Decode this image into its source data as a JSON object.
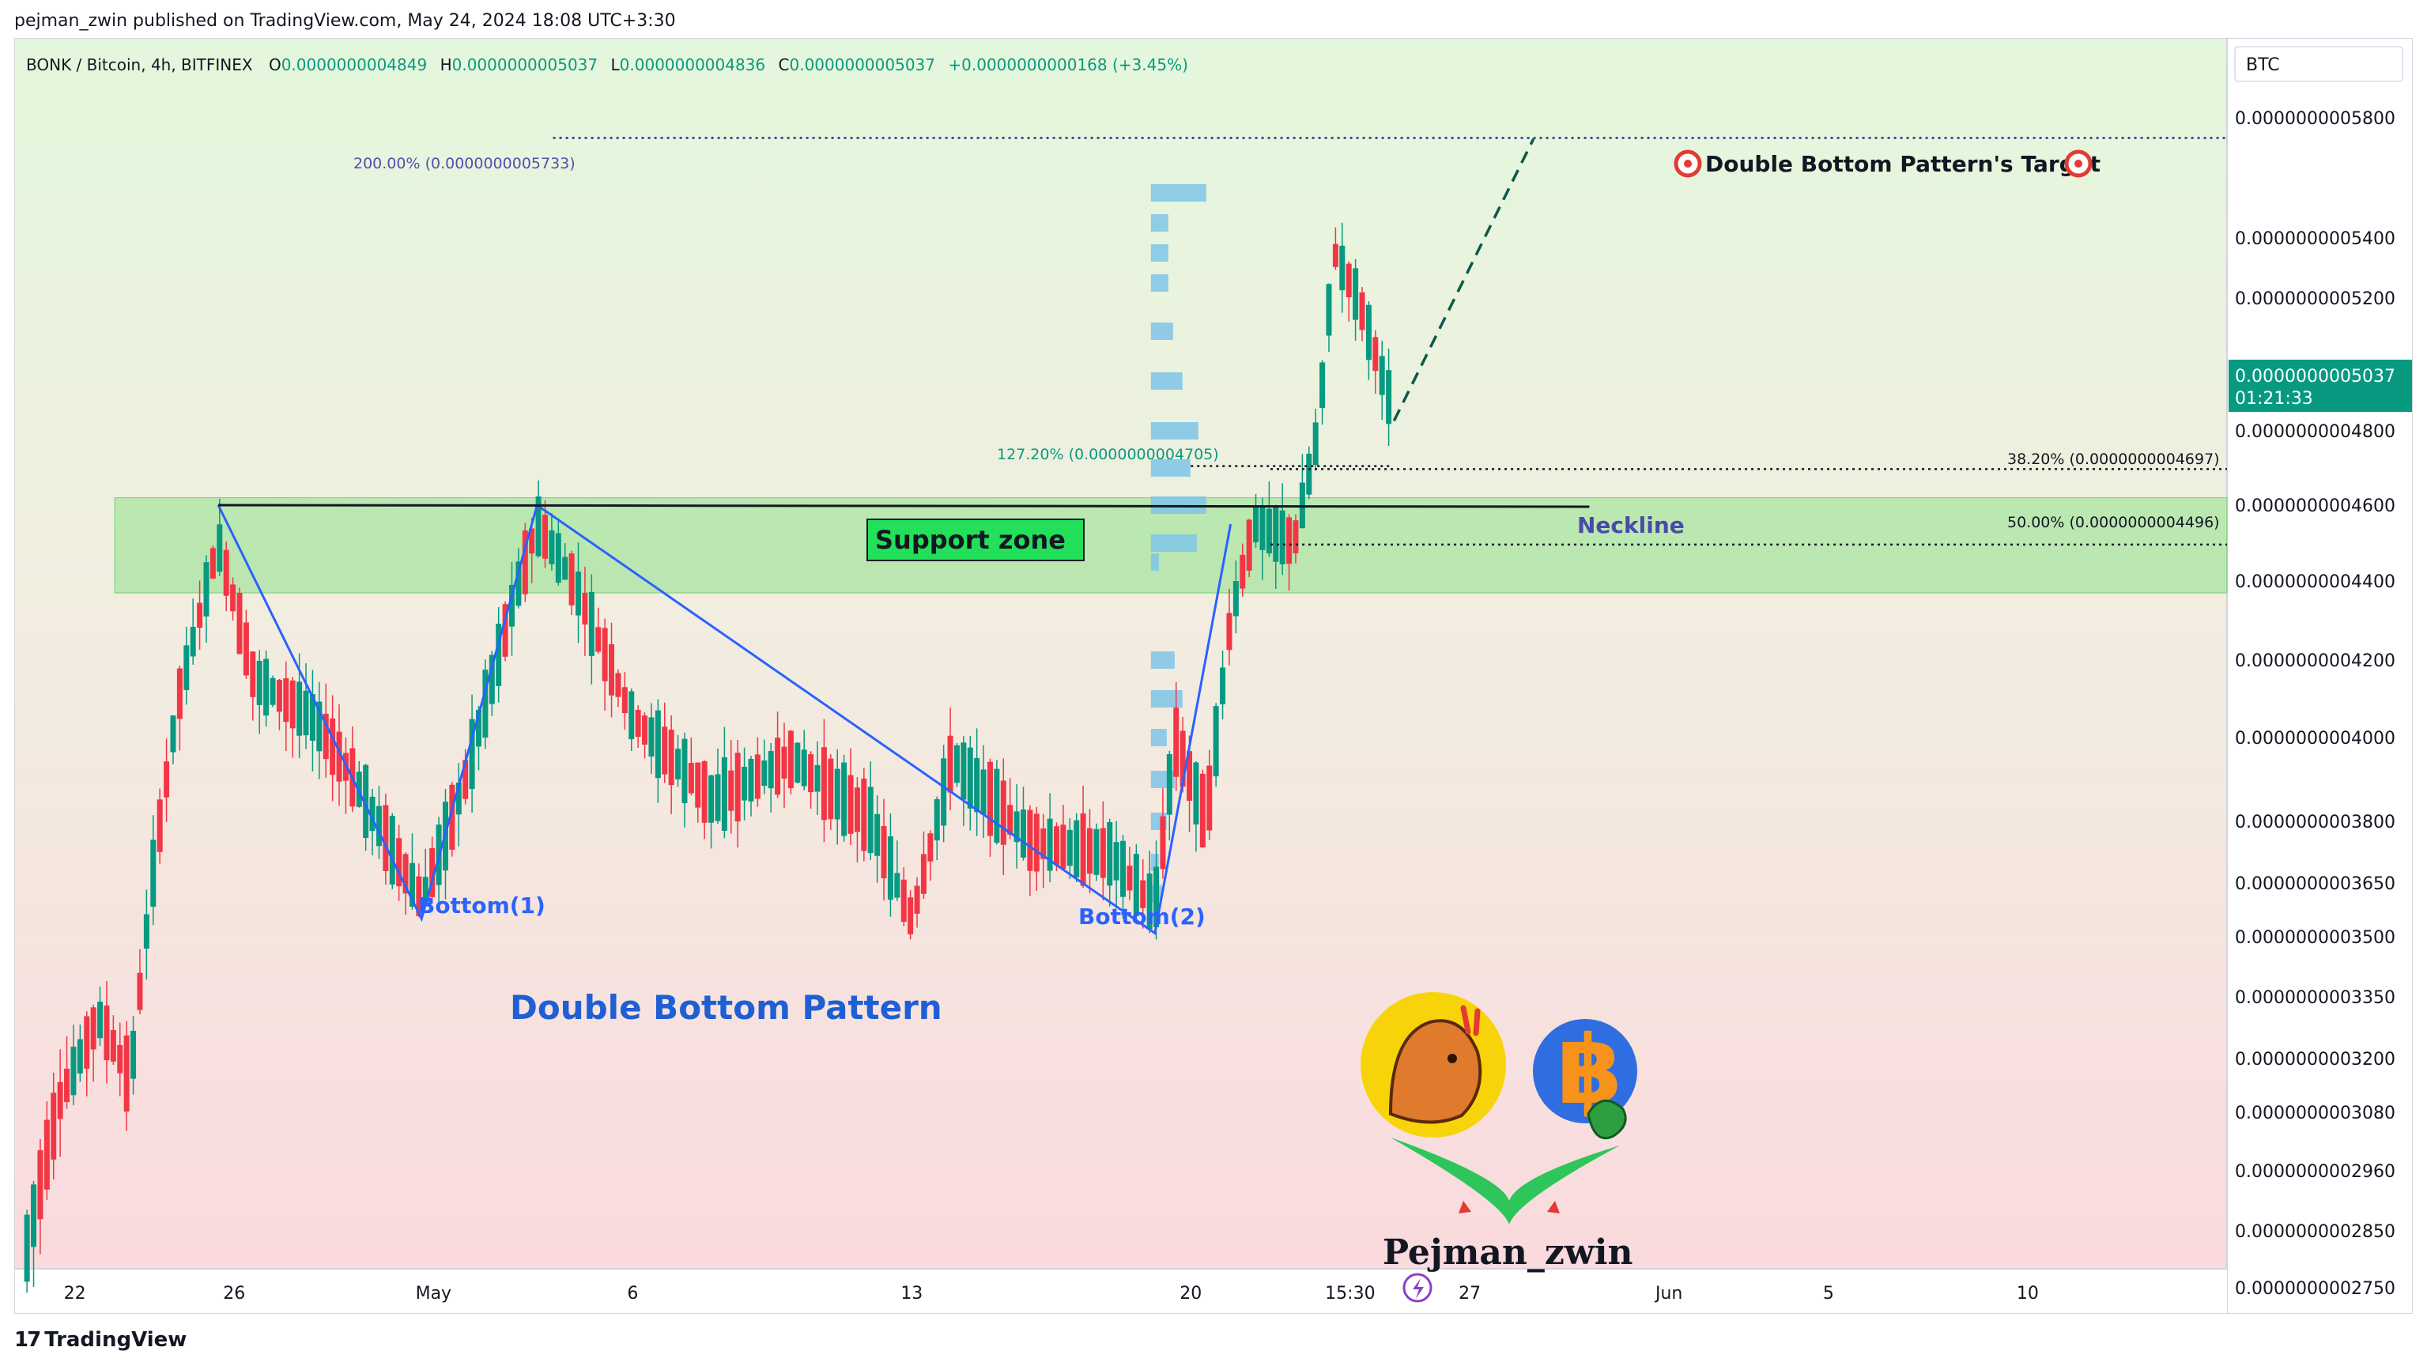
{
  "header": {
    "published": "pejman_zwin published on TradingView.com, May 24, 2024 18:08 UTC+3:30"
  },
  "footer": {
    "logo_text": "TradingView"
  },
  "legend": {
    "symbol": "BONK / Bitcoin, 4h, BITFINEX",
    "open_label": "O",
    "open": "0.0000000004849",
    "high_label": "H",
    "high": "0.0000000005037",
    "low_label": "L",
    "low": "0.0000000004836",
    "close_label": "C",
    "close": "0.0000000005037",
    "change": "+0.0000000000168 (+3.45%)"
  },
  "price_axis": {
    "currency": "BTC",
    "ticks": [
      "0.0000000005800",
      "0.0000000005400",
      "0.0000000005200",
      "0.0000000004800",
      "0.0000000004600",
      "0.0000000004400",
      "0.0000000004200",
      "0.0000000004000",
      "0.0000000003800",
      "0.0000000003650",
      "0.0000000003500",
      "0.0000000003350",
      "0.0000000003200",
      "0.0000000003080",
      "0.0000000002960",
      "0.0000000002850",
      "0.0000000002750"
    ],
    "tick_values": [
      5.8,
      5.4,
      5.2,
      4.8,
      4.6,
      4.4,
      4.2,
      4.0,
      3.8,
      3.65,
      3.5,
      3.35,
      3.2,
      3.08,
      2.96,
      2.85,
      2.75
    ],
    "current_price": "0.0000000005037",
    "countdown": "01:21:33",
    "colors": {
      "current_bg": "#089981"
    }
  },
  "time_axis": {
    "labels": [
      "22",
      "26",
      "May",
      "6",
      "13",
      "20",
      "15:30",
      "27",
      "Jun",
      "5",
      "10"
    ],
    "label_days": [
      22,
      26,
      31,
      36,
      43,
      50,
      54,
      57,
      62,
      66,
      71
    ]
  },
  "annotations": {
    "fib_200": "200.00% (0.0000000005733)",
    "fib_127": "127.20% (0.0000000004705)",
    "fib_382": "38.20% (0.0000000004697)",
    "fib_50": "50.00% (0.0000000004496)",
    "target": "Double Bottom Pattern's Target",
    "support_zone": "Support zone",
    "neckline": "Neckline",
    "bottom1": "Bottom(1)",
    "bottom2": "Bottom(2)",
    "pattern_title": "Double Bottom Pattern",
    "author": "Pejman_zwin"
  },
  "chart_data": {
    "type": "candlestick",
    "x_unit": "days since Apr 0 (Apr 22 = 22, May 1 = 31, Jun 1 = 62)",
    "y_unit": "price in units of 1e-10 BTC",
    "xlim": [
      20.5,
      76
    ],
    "ylim": [
      2.75,
      6.05
    ],
    "price_at_ylim_top": 6.05,
    "support_zone": {
      "low": 4.37,
      "high": 4.62
    },
    "neckline": 4.6,
    "fib_levels": [
      {
        "label": "200.00%",
        "value": 5.733
      },
      {
        "label": "127.20%",
        "value": 4.705
      },
      {
        "label": "38.20%",
        "value": 4.697
      },
      {
        "label": "50.00%",
        "value": 4.496
      }
    ],
    "pattern_points": [
      {
        "x": 25.6,
        "y": 4.6
      },
      {
        "x": 30.7,
        "y": 3.55
      },
      {
        "x": 33.6,
        "y": 4.6
      },
      {
        "x": 49.1,
        "y": 3.51
      },
      {
        "x": 51.0,
        "y": 4.55
      }
    ],
    "projection": [
      {
        "x": 55.1,
        "y": 4.83
      },
      {
        "x": 58.6,
        "y": 5.73
      }
    ],
    "colors": {
      "up": "#089981",
      "down": "#f23645",
      "pattern": "#2962ff",
      "volume_profile": "#7fc4e8"
    }
  }
}
